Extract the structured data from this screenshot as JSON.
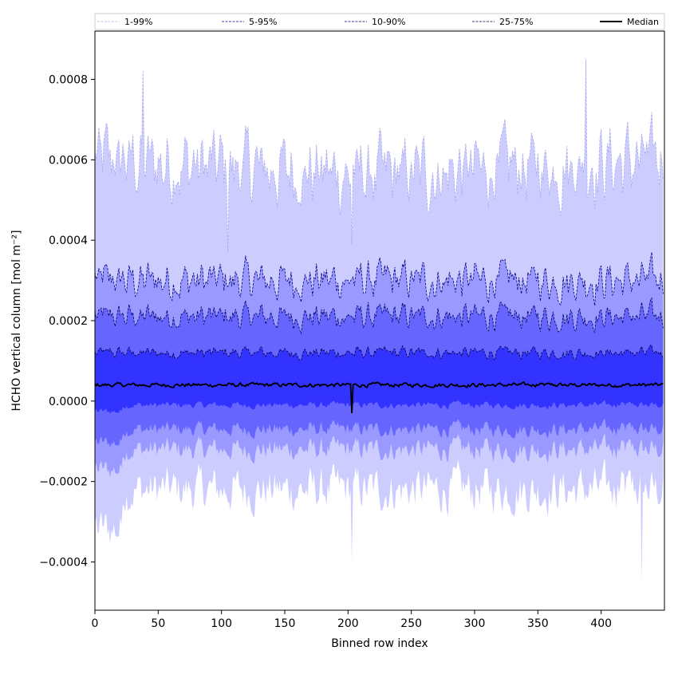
{
  "chart_data": {
    "type": "area",
    "xlabel": "Binned row index",
    "ylabel": "HCHO vertical column [mol m⁻²]",
    "xlim": [
      0,
      450
    ],
    "ylim": [
      -0.00052,
      0.00092
    ],
    "xticks": [
      0,
      50,
      100,
      150,
      200,
      250,
      300,
      350,
      400
    ],
    "yticks": [
      -0.0004,
      -0.0002,
      0.0,
      0.0002,
      0.0004,
      0.0006,
      0.0008
    ],
    "ytick_labels": [
      "−0.0004",
      "−0.0002",
      "0.0000",
      "0.0002",
      "0.0004",
      "0.0006",
      "0.0008"
    ],
    "grid": false,
    "legend_position": "top",
    "bands": [
      {
        "name": "1-99%",
        "color": "#ccccff",
        "line_color": "#aaaaee",
        "low": -0.00022,
        "high": 0.0006
      },
      {
        "name": "5-95%",
        "color": "#9999ff",
        "line_color": "#000088",
        "low": -0.00012,
        "high": 0.0003
      },
      {
        "name": "10-90%",
        "color": "#6666ff",
        "line_color": "#000066",
        "low": -7e-05,
        "high": 0.00021
      },
      {
        "name": "25-75%",
        "color": "#3333ff",
        "line_color": "#000044",
        "low": -1e-05,
        "high": 0.00012
      }
    ],
    "median": {
      "name": "Median",
      "color": "#000000",
      "level": 4e-05
    },
    "n_points": 450,
    "notable_spikes": [
      {
        "x": 38,
        "y": 0.00082
      },
      {
        "x": 105,
        "y": 0.00037
      },
      {
        "x": 203,
        "y": 0.00039
      },
      {
        "x": 203,
        "y": -0.0004
      },
      {
        "x": 388,
        "y": 0.00085
      },
      {
        "x": 432,
        "y": -0.00045
      }
    ],
    "legend": [
      "1-99%",
      "5-95%",
      "10-90%",
      "25-75%",
      "Median"
    ]
  }
}
